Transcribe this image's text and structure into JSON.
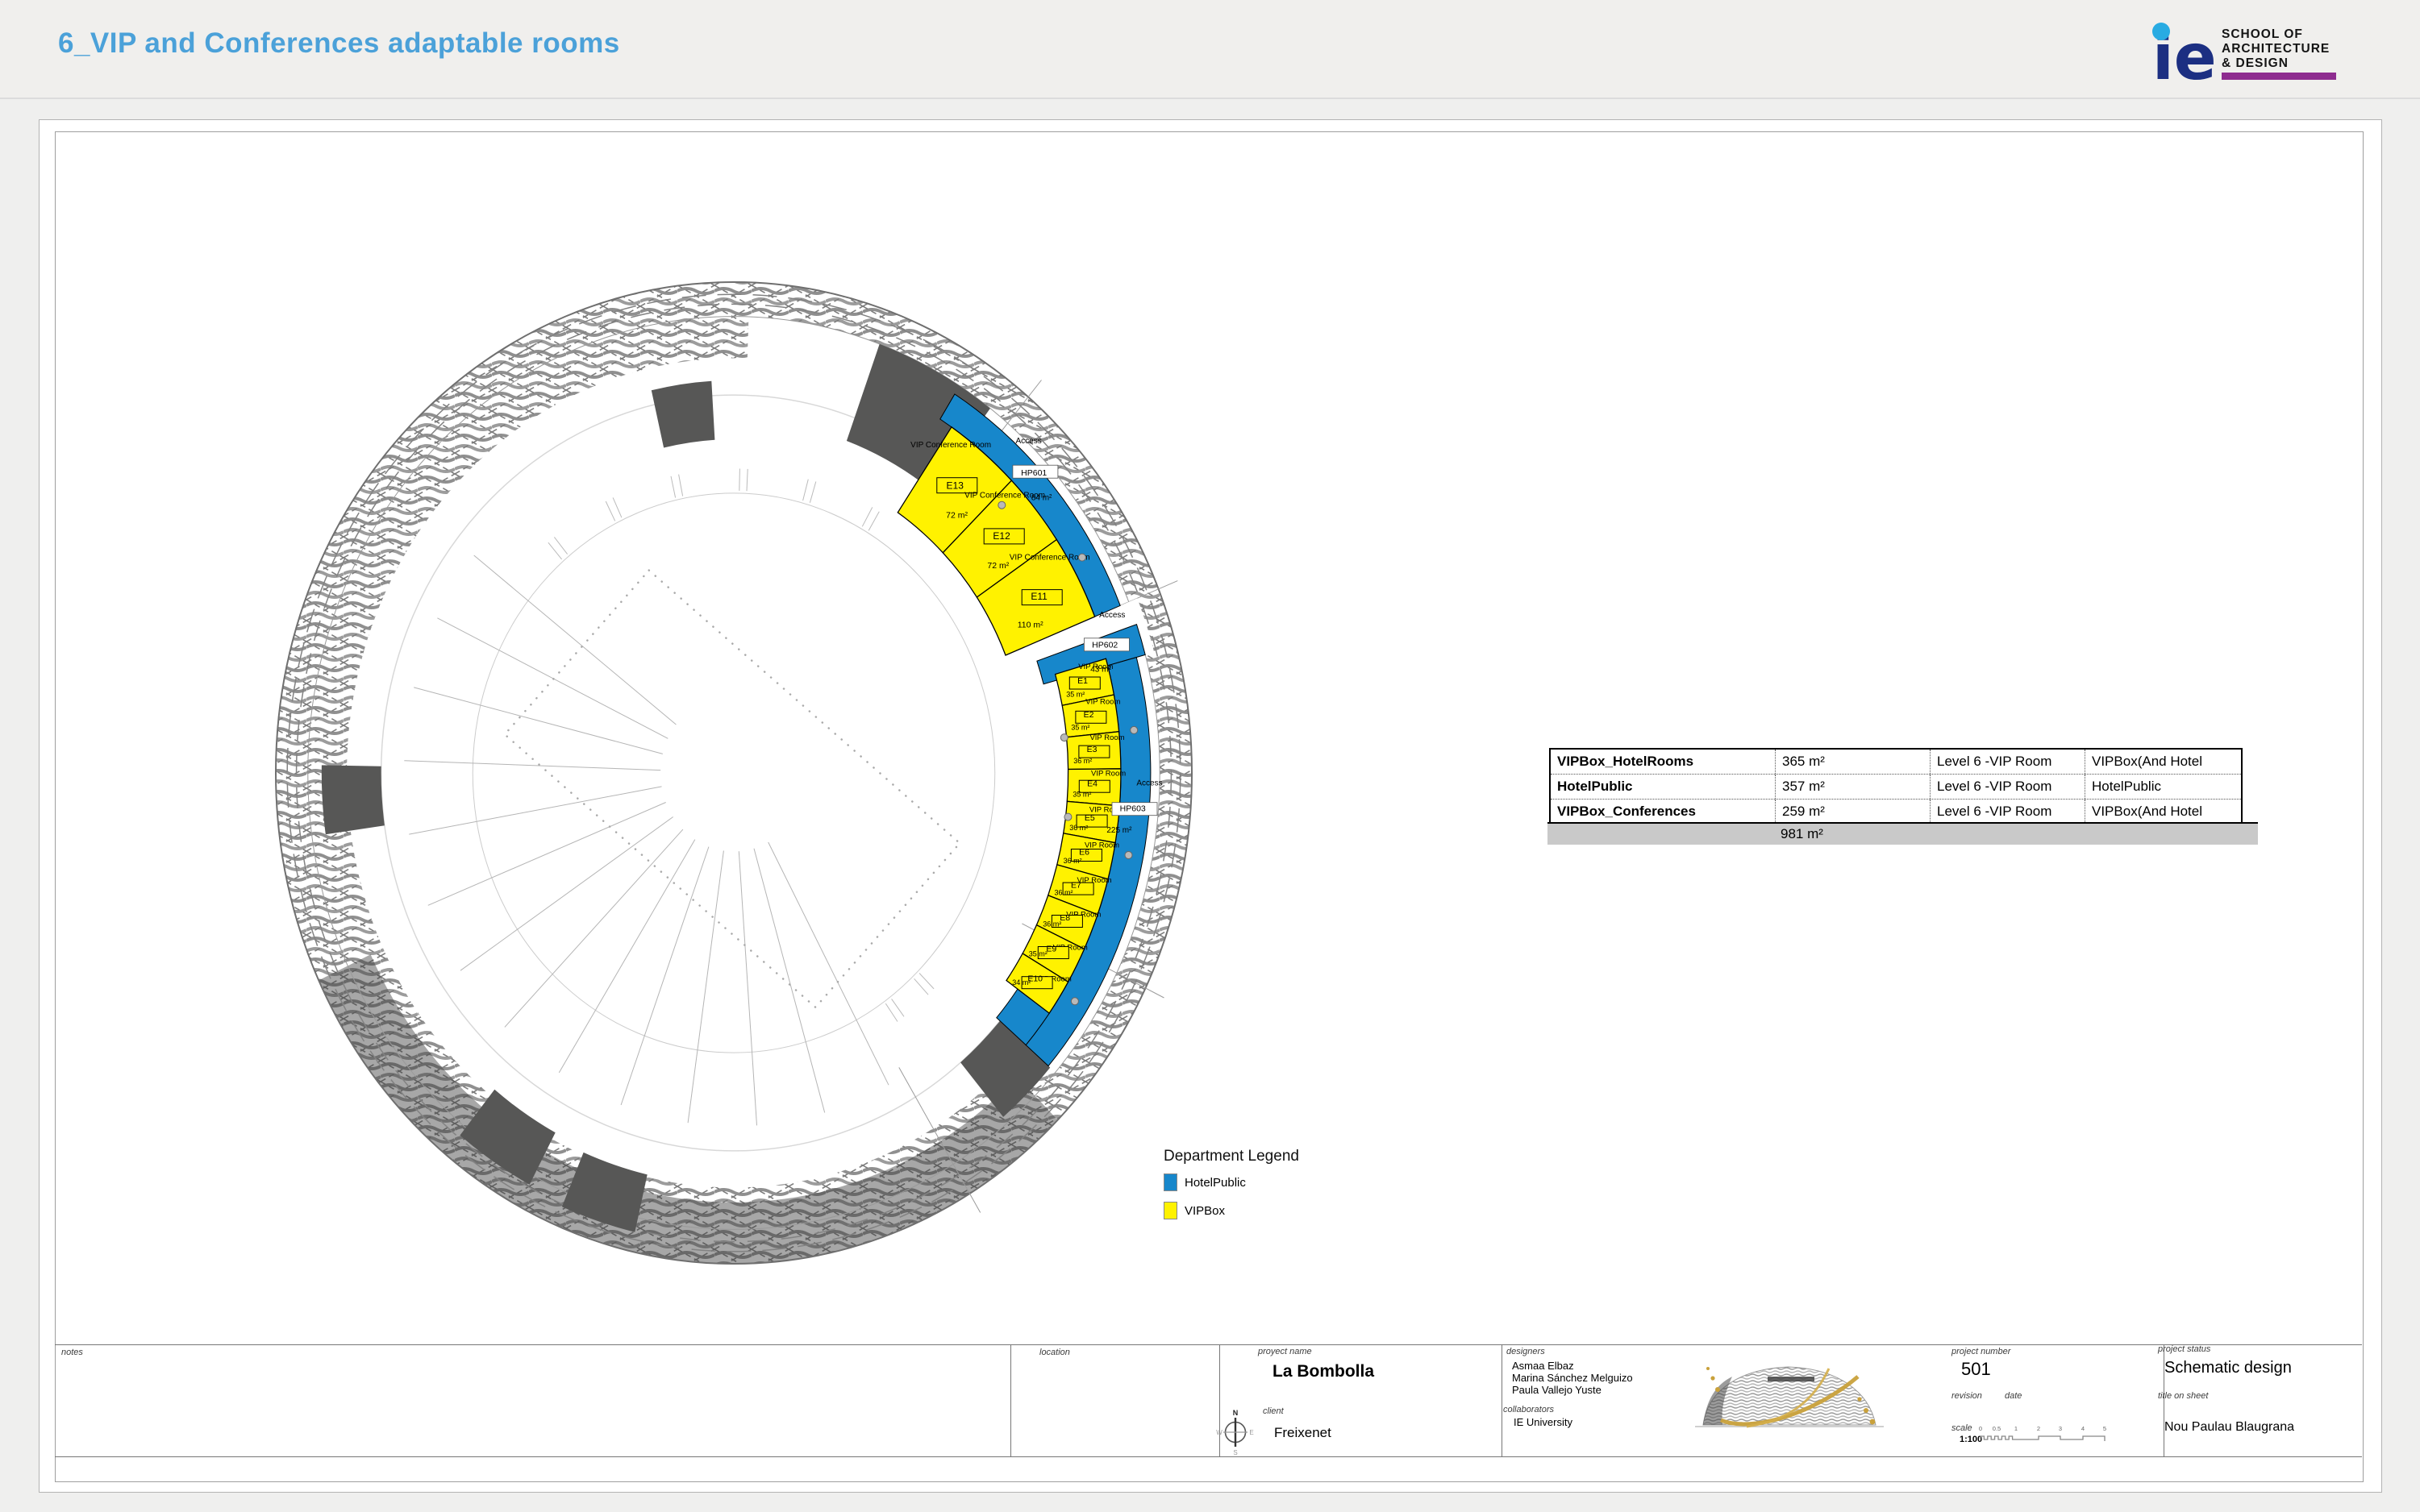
{
  "header": {
    "title": "6_VIP and Conferences adaptable rooms",
    "logo": {
      "ie": "ie",
      "line1": "SCHOOL OF",
      "line2": "ARCHITECTURE",
      "line3": "& DESIGN"
    }
  },
  "plan": {
    "legend": {
      "title": "Department Legend",
      "items": [
        {
          "label": "HotelPublic",
          "color": "#1787CB"
        },
        {
          "label": "VIPBox",
          "color": "#FFF200"
        }
      ]
    },
    "colors": {
      "vipbox": "#FFF200",
      "hotelpublic": "#1787CB",
      "core": "#575756"
    },
    "rooms": [
      {
        "id": "E13",
        "name": "VIP Conference Room",
        "area": "72 m²",
        "cluster": "conf",
        "a0": 34,
        "a1": 45.5
      },
      {
        "id": "E12",
        "name": "VIP Conference Room",
        "area": "72 m²",
        "cluster": "conf",
        "a0": 45.5,
        "a1": 56
      },
      {
        "id": "E11",
        "name": "VIP Conference Room",
        "area": "110 m²",
        "cluster": "conf",
        "a0": 56,
        "a1": 68
      },
      {
        "id": "E1",
        "name": "VIP Room",
        "area": "35 m²",
        "cluster": "vip",
        "a0": 74,
        "a1": 79.14
      },
      {
        "id": "E2",
        "name": "VIP Room",
        "area": "35 m²",
        "cluster": "vip",
        "a0": 79.14,
        "a1": 84.28
      },
      {
        "id": "E3",
        "name": "VIP Room",
        "area": "36 m²",
        "cluster": "vip",
        "a0": 84.28,
        "a1": 89.42
      },
      {
        "id": "E4",
        "name": "VIP Room",
        "area": "35 m²",
        "cluster": "vip",
        "a0": 89.42,
        "a1": 94.56
      },
      {
        "id": "E5",
        "name": "VIP Room",
        "area": "36 m²",
        "cluster": "vip",
        "a0": 94.56,
        "a1": 99.7
      },
      {
        "id": "E6",
        "name": "VIP Room",
        "area": "36 m²",
        "cluster": "vip",
        "a0": 99.7,
        "a1": 104.84
      },
      {
        "id": "E7",
        "name": "VIP Room",
        "area": "36 m²",
        "cluster": "vip",
        "a0": 104.84,
        "a1": 109.98
      },
      {
        "id": "E8",
        "name": "VIP Room",
        "area": "36 m²",
        "cluster": "vip",
        "a0": 109.98,
        "a1": 115.12
      },
      {
        "id": "E9",
        "name": "VIP Room",
        "area": "35 m²",
        "cluster": "vip",
        "a0": 115.12,
        "a1": 120.26
      },
      {
        "id": "E10",
        "name": "VIP Room",
        "area": "34 m²",
        "cluster": "vip",
        "a0": 120.26,
        "a1": 125.4
      }
    ],
    "accesses": [
      {
        "id": "HP601",
        "name": "Access",
        "area": "84 m²",
        "la": 47,
        "lr": 0.9
      },
      {
        "id": "HP602",
        "name": "Access",
        "area": "43 m²",
        "la": 72.2,
        "lr": 0.855
      },
      {
        "id": "HP603",
        "name": "Access",
        "area": "225 m²",
        "la": 94.8,
        "lr": 0.878
      }
    ]
  },
  "area_table": {
    "rows": [
      {
        "name": "VIPBox_HotelRooms",
        "area": "365 m²",
        "level": "Level 6 -VIP Room",
        "department": "VIPBox(And Hotel"
      },
      {
        "name": "HotelPublic",
        "area": "357 m²",
        "level": "Level 6 -VIP Room",
        "department": "HotelPublic"
      },
      {
        "name": "VIPBox_Conferences",
        "area": "259 m²",
        "level": "Level 6 -VIP Room",
        "department": "VIPBox(And Hotel"
      }
    ],
    "total": "981 m²"
  },
  "title_block": {
    "notes_label": "notes",
    "location_label": "location",
    "project_name_label": "proyect name",
    "project_name": "La Bombolla",
    "client_label": "client",
    "client": "Freixenet",
    "designers_label": "designers",
    "designers": [
      "Asmaa Elbaz",
      "Marina Sánchez Melguizo",
      "Paula Vallejo Yuste"
    ],
    "collaborators_label": "collaborators",
    "collaborators": "IE University",
    "project_number_label": "project number",
    "project_number": "501",
    "revision_label": "revision",
    "date_label": "date",
    "scale_label": "scale",
    "scale": "1:100",
    "scale_ticks": [
      "0",
      "0.5",
      "1",
      "2",
      "3",
      "4",
      "5"
    ],
    "project_status_label": "project status",
    "project_status": "Schematic design",
    "title_on_sheet_label": "title on sheet",
    "title_on_sheet": "Nou Paulau Blaugrana",
    "compass": {
      "n": "N",
      "e": "E",
      "s": "S",
      "w": "W"
    }
  }
}
